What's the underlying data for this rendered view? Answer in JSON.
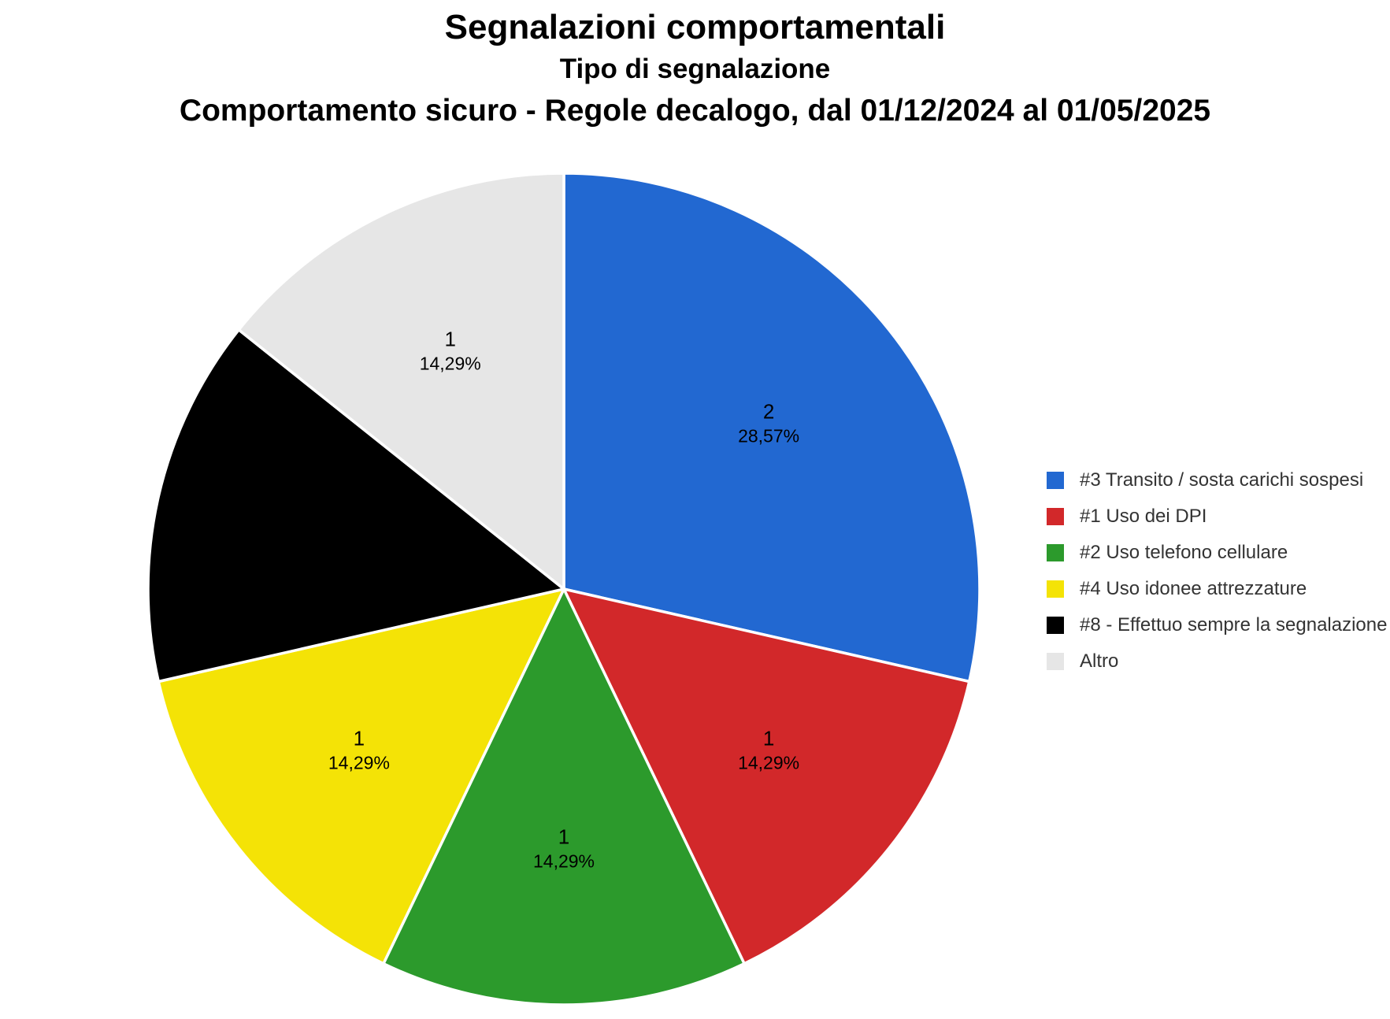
{
  "title": "Segnalazioni comportamentali",
  "subtitle": "Tipo di segnalazione",
  "period_line": "Comportamento sicuro - Regole decalogo, dal 01/12/2024 al 01/05/2025",
  "colors": {
    "background": "#ffffff",
    "title_text": "#000000",
    "legend_text": "#333333",
    "slice_separator": "#ffffff",
    "label_text": "#000000"
  },
  "chart_data": {
    "type": "pie",
    "title": "Segnalazioni comportamentali",
    "subtitle": "Tipo di segnalazione",
    "annotation": "Comportamento sicuro - Regole decalogo, dal 01/12/2024 al 01/05/2025",
    "total": 7,
    "start_angle": "top, clockwise",
    "legend_position": "right",
    "decimal_separator": ",",
    "slices": [
      {
        "label": "#3 Transito / sosta carichi sospesi",
        "value": 2,
        "percent": 28.57,
        "value_label": "2",
        "pct_label": "28,57%",
        "color": "#2268d1"
      },
      {
        "label": "#1 Uso dei DPI",
        "value": 1,
        "percent": 14.29,
        "value_label": "1",
        "pct_label": "14,29%",
        "color": "#d2282a"
      },
      {
        "label": "#2 Uso telefono cellulare",
        "value": 1,
        "percent": 14.29,
        "value_label": "1",
        "pct_label": "14,29%",
        "color": "#2c9a2c"
      },
      {
        "label": "#4 Uso idonee attrezzature",
        "value": 1,
        "percent": 14.29,
        "value_label": "1",
        "pct_label": "14,29%",
        "color": "#f4e306"
      },
      {
        "label": "#8 - Effettuo sempre la segnalazione",
        "value": 1,
        "percent": 14.29,
        "value_label": "1",
        "pct_label": "14,29%",
        "color": "#000000"
      },
      {
        "label": "Altro",
        "value": 1,
        "percent": 14.29,
        "value_label": "1",
        "pct_label": "14,29%",
        "color": "#e6e6e6"
      }
    ]
  }
}
